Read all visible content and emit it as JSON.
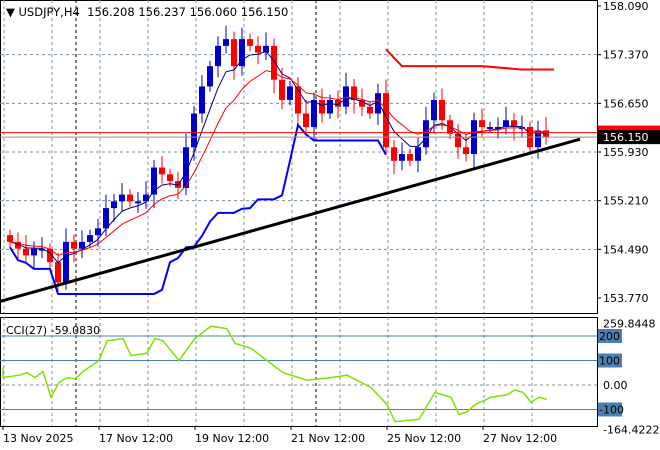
{
  "header": {
    "symbol": "USDJPY,H4",
    "open": "156.208",
    "high": "156.237",
    "low": "156.060",
    "close": "156.150"
  },
  "colors": {
    "bull": "#0000cc",
    "bear": "#ff0000",
    "ma_fast": "#000080",
    "ma_slow": "#ff0000",
    "step": "#0000ff",
    "cci": "#80e000",
    "level": "#4a7fb0",
    "trend": "#000000"
  },
  "chart_data": [
    {
      "type": "candlestick",
      "title": "USDJPY,H4",
      "ylim": [
        153.77,
        158.09
      ],
      "y_ticks": [
        "158.090",
        "157.370",
        "156.650",
        "155.930",
        "155.210",
        "154.490",
        "153.770"
      ],
      "x_ticks": [
        "13 Nov 2025",
        "17 Nov 12:00",
        "19 Nov 12:00",
        "21 Nov 12:00",
        "25 Nov 12:00",
        "27 Nov 12:00"
      ],
      "closes": [
        154.6,
        154.5,
        154.4,
        154.5,
        154.5,
        154.3,
        154.0,
        154.6,
        154.5,
        154.6,
        154.7,
        154.8,
        155.1,
        155.2,
        155.3,
        155.2,
        155.2,
        155.3,
        155.7,
        155.6,
        155.5,
        155.4,
        156.0,
        156.5,
        156.9,
        157.2,
        157.5,
        157.6,
        157.2,
        157.6,
        157.5,
        157.4,
        157.5,
        157.0,
        156.7,
        156.9,
        156.5,
        156.3,
        156.7,
        156.5,
        156.7,
        156.6,
        156.9,
        156.7,
        156.6,
        156.5,
        156.8,
        156.0,
        155.8,
        155.9,
        155.8,
        156.0,
        156.4,
        156.7,
        156.4,
        156.2,
        156.0,
        155.9,
        156.4,
        156.3,
        156.3,
        156.3,
        156.4,
        156.3,
        156.3,
        156.0,
        156.25,
        156.15
      ],
      "bid_line": 156.217,
      "last_price_label": "156.150",
      "last_price": 156.15,
      "resistance": {
        "from_bar": 47,
        "segments": [
          [
            47,
            157.45
          ],
          [
            49,
            157.2
          ],
          [
            59,
            157.2
          ],
          [
            64,
            157.15
          ],
          [
            68,
            157.15
          ]
        ]
      },
      "trendline": [
        [
          0,
          153.72
        ],
        [
          72,
          156.12
        ]
      ]
    },
    {
      "type": "line",
      "title": "CCI(27) -59.0830",
      "label": "CCI(27)",
      "value": "-59.0830",
      "ylim": [
        -164.4222,
        259.8448
      ],
      "axis_max": "259.8448",
      "axis_min": "-164.4222",
      "levels": [
        "200",
        "100",
        "0.00",
        "-100"
      ],
      "points": [
        [
          0,
          30
        ],
        [
          2,
          40
        ],
        [
          3,
          50
        ],
        [
          4,
          30
        ],
        [
          5,
          55
        ],
        [
          6,
          -50
        ],
        [
          7,
          10
        ],
        [
          8,
          30
        ],
        [
          9,
          25
        ],
        [
          10,
          55
        ],
        [
          12,
          100
        ],
        [
          13,
          180
        ],
        [
          15,
          190
        ],
        [
          16,
          120
        ],
        [
          18,
          130
        ],
        [
          19,
          190
        ],
        [
          20,
          180
        ],
        [
          22,
          100
        ],
        [
          24,
          190
        ],
        [
          26,
          240
        ],
        [
          28,
          230
        ],
        [
          29,
          170
        ],
        [
          31,
          150
        ],
        [
          33,
          100
        ],
        [
          35,
          50
        ],
        [
          38,
          20
        ],
        [
          41,
          30
        ],
        [
          43,
          40
        ],
        [
          46,
          -10
        ],
        [
          48,
          -80
        ],
        [
          49,
          -150
        ],
        [
          52,
          -140
        ],
        [
          54,
          -30
        ],
        [
          56,
          -50
        ],
        [
          57,
          -120
        ],
        [
          58,
          -110
        ],
        [
          59,
          -80
        ],
        [
          61,
          -50
        ],
        [
          63,
          -40
        ],
        [
          64,
          -20
        ],
        [
          65,
          -30
        ],
        [
          66,
          -70
        ],
        [
          67,
          -50
        ],
        [
          68,
          -59
        ]
      ]
    }
  ]
}
